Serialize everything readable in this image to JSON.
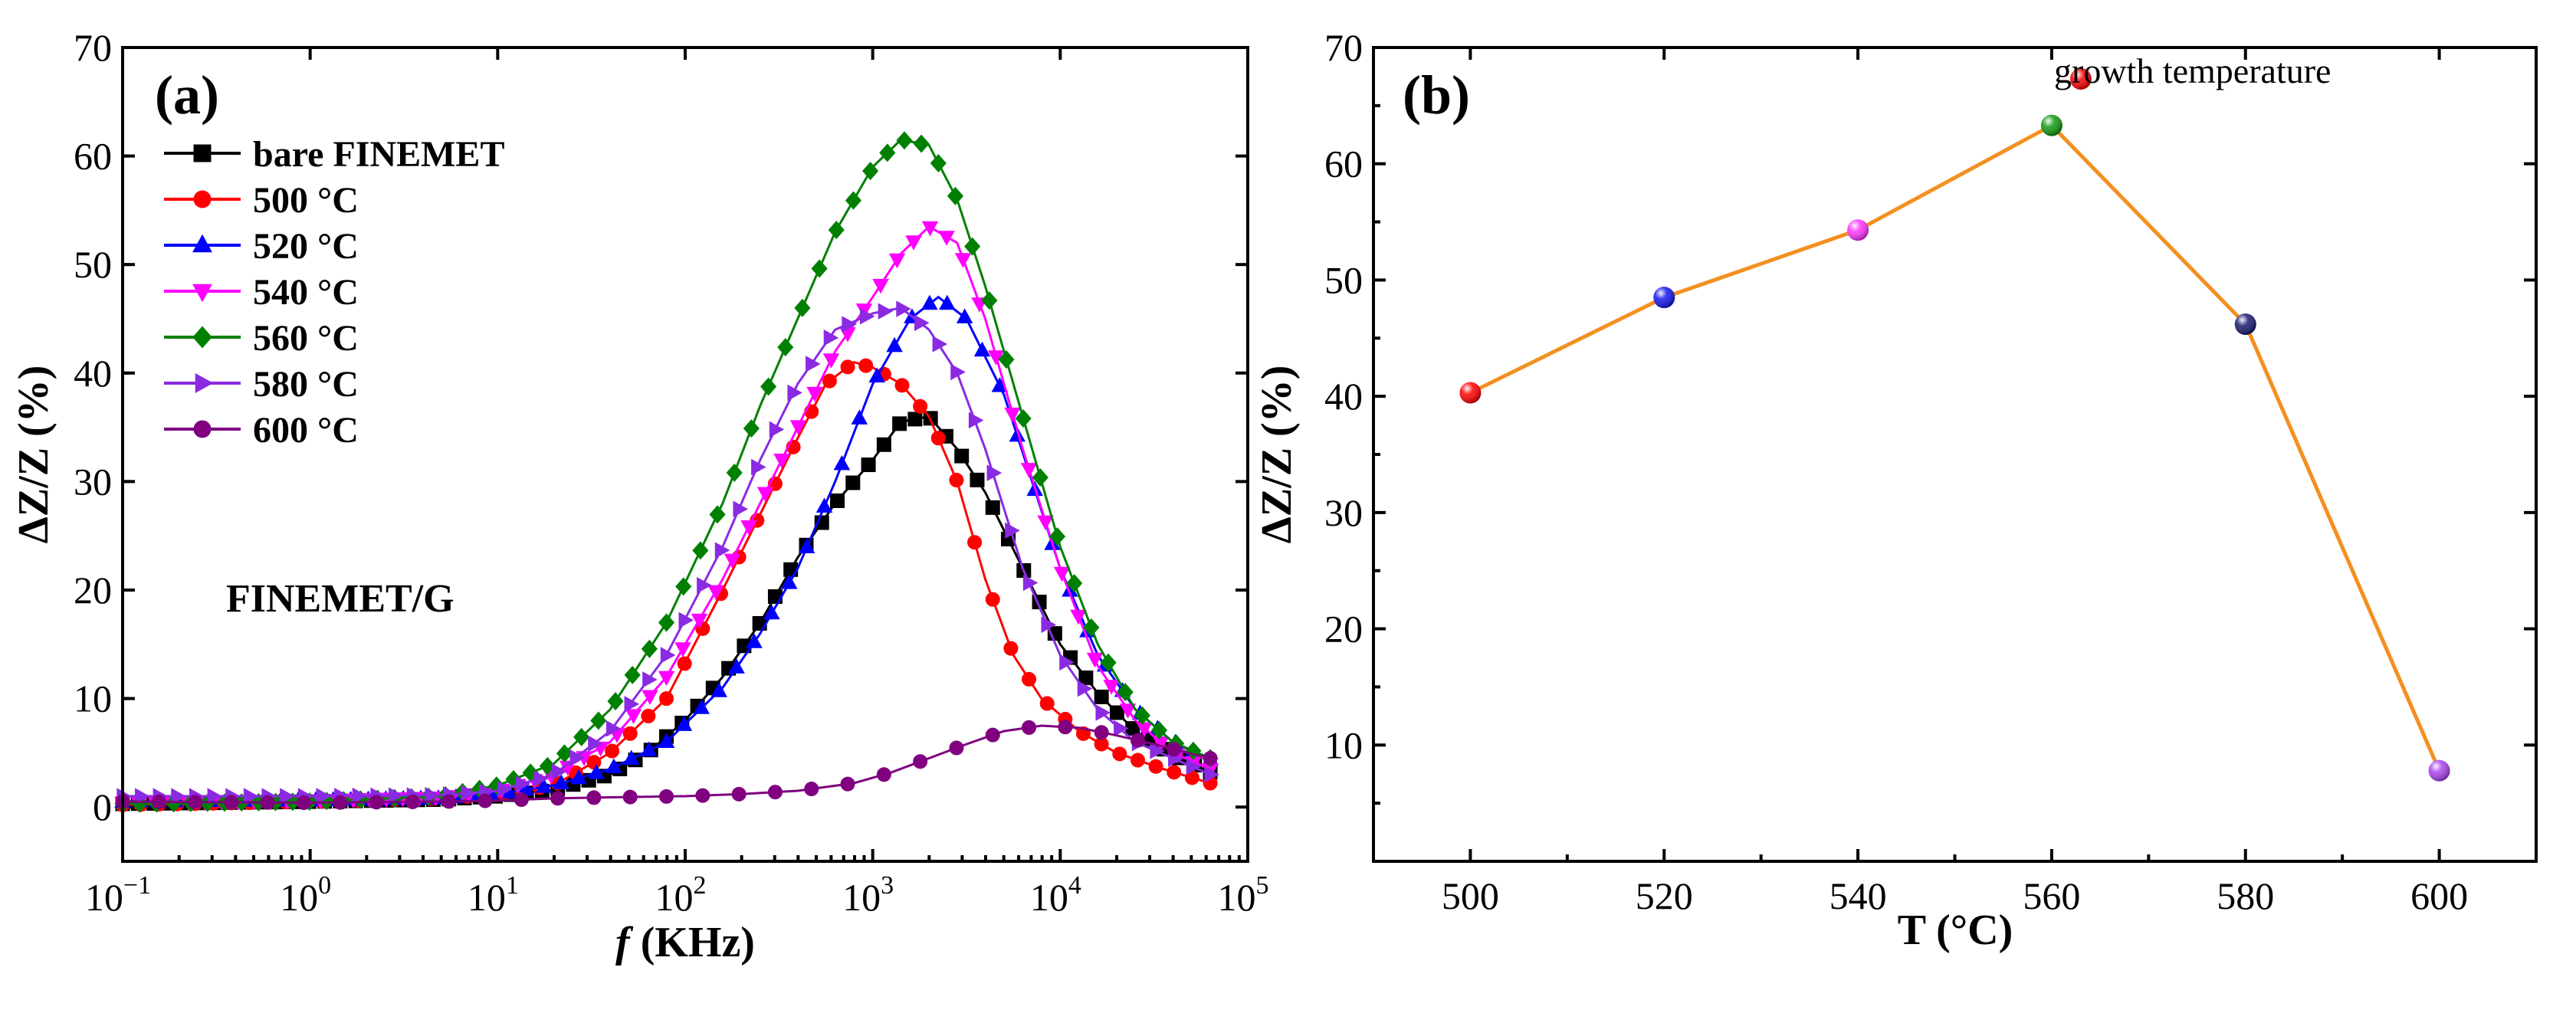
{
  "chart_data": [
    {
      "panel_label": "(a)",
      "type": "line",
      "xscale": "log",
      "xlim_exp": [
        -1,
        5
      ],
      "x_tick_labels": [
        {
          "base": "10",
          "exp": "−1"
        },
        {
          "base": "10",
          "exp": "0"
        },
        {
          "base": "10",
          "exp": "1"
        },
        {
          "base": "10",
          "exp": "2"
        },
        {
          "base": "10",
          "exp": "3"
        },
        {
          "base": "10",
          "exp": "4"
        },
        {
          "base": "10",
          "exp": "5"
        }
      ],
      "ylim": [
        -5,
        70
      ],
      "y_ticks": [
        0,
        10,
        20,
        30,
        40,
        50,
        60,
        70
      ],
      "xlabel": {
        "italic": "f",
        "rest": " (KHz)"
      },
      "ylabel": "ΔZ/Z (%)",
      "annotation": "FINEMET/G",
      "legend_position": "top-left",
      "series": [
        {
          "name": "bare FINEMET",
          "color": "#000000",
          "marker": "square",
          "points": [
            [
              -1,
              0.3
            ],
            [
              0,
              0.5
            ],
            [
              0.7,
              0.7
            ],
            [
              1,
              1
            ],
            [
              1.3,
              1.6
            ],
            [
              1.6,
              3
            ],
            [
              1.8,
              5
            ],
            [
              2,
              8
            ],
            [
              2.2,
              12
            ],
            [
              2.4,
              17
            ],
            [
              2.6,
              23
            ],
            [
              2.8,
              28
            ],
            [
              3,
              32
            ],
            [
              3.15,
              35.5
            ],
            [
              3.3,
              36
            ],
            [
              3.45,
              33
            ],
            [
              3.6,
              29
            ],
            [
              3.8,
              22
            ],
            [
              4,
              15
            ],
            [
              4.2,
              10.5
            ],
            [
              4.4,
              7
            ],
            [
              4.6,
              4.8
            ],
            [
              4.8,
              3.2
            ]
          ]
        },
        {
          "name": "500 °C",
          "color": "#ff0000",
          "marker": "circle",
          "points": [
            [
              -1,
              0.2
            ],
            [
              0,
              0.5
            ],
            [
              0.7,
              0.8
            ],
            [
              1,
              1.2
            ],
            [
              1.3,
              2
            ],
            [
              1.6,
              5
            ],
            [
              1.9,
              10
            ],
            [
              2.2,
              20
            ],
            [
              2.4,
              27
            ],
            [
              2.6,
              34
            ],
            [
              2.75,
              39
            ],
            [
              2.9,
              41
            ],
            [
              3,
              40.5
            ],
            [
              3.15,
              39
            ],
            [
              3.3,
              36
            ],
            [
              3.45,
              30
            ],
            [
              3.6,
              21
            ],
            [
              3.75,
              14
            ],
            [
              3.9,
              10
            ],
            [
              4.1,
              7
            ],
            [
              4.3,
              5
            ],
            [
              4.55,
              3.5
            ],
            [
              4.8,
              2.2
            ]
          ]
        },
        {
          "name": "520 °C",
          "color": "#0000ff",
          "marker": "triangle-up",
          "points": [
            [
              -1,
              0.5
            ],
            [
              0,
              0.6
            ],
            [
              0.7,
              0.8
            ],
            [
              1,
              1.2
            ],
            [
              1.3,
              2
            ],
            [
              1.6,
              3.5
            ],
            [
              1.9,
              6
            ],
            [
              2.2,
              11
            ],
            [
              2.4,
              16
            ],
            [
              2.6,
              22
            ],
            [
              2.8,
              30
            ],
            [
              3,
              39
            ],
            [
              3.2,
              45
            ],
            [
              3.35,
              47
            ],
            [
              3.5,
              45
            ],
            [
              3.7,
              38
            ],
            [
              3.85,
              30
            ],
            [
              4,
              22
            ],
            [
              4.2,
              14
            ],
            [
              4.4,
              9
            ],
            [
              4.6,
              6
            ],
            [
              4.8,
              4.4
            ]
          ]
        },
        {
          "name": "540 °C",
          "color": "#ff00ff",
          "marker": "triangle-down",
          "points": [
            [
              -1,
              0.4
            ],
            [
              0,
              0.6
            ],
            [
              0.7,
              0.9
            ],
            [
              1,
              1.5
            ],
            [
              1.3,
              3
            ],
            [
              1.6,
              6
            ],
            [
              1.9,
              12
            ],
            [
              2.2,
              21
            ],
            [
              2.4,
              28
            ],
            [
              2.6,
              35
            ],
            [
              2.8,
              42
            ],
            [
              3,
              47
            ],
            [
              3.15,
              51
            ],
            [
              3.3,
              53.5
            ],
            [
              3.45,
              52
            ],
            [
              3.6,
              45
            ],
            [
              3.8,
              33
            ],
            [
              4,
              22
            ],
            [
              4.2,
              13
            ],
            [
              4.4,
              8
            ],
            [
              4.6,
              5
            ],
            [
              4.8,
              3.5
            ]
          ]
        },
        {
          "name": "560 °C",
          "color": "#008000",
          "marker": "diamond",
          "points": [
            [
              -1,
              0.3
            ],
            [
              0,
              0.5
            ],
            [
              0.7,
              1
            ],
            [
              1,
              2
            ],
            [
              1.3,
              4
            ],
            [
              1.6,
              9
            ],
            [
              1.9,
              17
            ],
            [
              2.2,
              28
            ],
            [
              2.4,
              37
            ],
            [
              2.6,
              45
            ],
            [
              2.8,
              53
            ],
            [
              3,
              59
            ],
            [
              3.15,
              61.5
            ],
            [
              3.3,
              61
            ],
            [
              3.45,
              56
            ],
            [
              3.6,
              48
            ],
            [
              3.8,
              36
            ],
            [
              4,
              24
            ],
            [
              4.2,
              15
            ],
            [
              4.4,
              9
            ],
            [
              4.6,
              6
            ],
            [
              4.8,
              4.5
            ]
          ]
        },
        {
          "name": "580 °C",
          "color": "#8a2be2",
          "marker": "triangle-right",
          "points": [
            [
              -1,
              1
            ],
            [
              0,
              1
            ],
            [
              0.7,
              1.1
            ],
            [
              1,
              1.5
            ],
            [
              1.3,
              3
            ],
            [
              1.6,
              7
            ],
            [
              1.9,
              14
            ],
            [
              2.2,
              24
            ],
            [
              2.4,
              32
            ],
            [
              2.6,
              39
            ],
            [
              2.8,
              44
            ],
            [
              3,
              45.5
            ],
            [
              3.15,
              46
            ],
            [
              3.3,
              44
            ],
            [
              3.45,
              40
            ],
            [
              3.6,
              33
            ],
            [
              3.8,
              22
            ],
            [
              4,
              14
            ],
            [
              4.2,
              9
            ],
            [
              4.4,
              6
            ],
            [
              4.6,
              4.5
            ],
            [
              4.8,
              3
            ]
          ]
        },
        {
          "name": "600 °C",
          "color": "#800080",
          "marker": "circle",
          "points": [
            [
              -1,
              0.5
            ],
            [
              0,
              0.4
            ],
            [
              0.7,
              0.5
            ],
            [
              1,
              0.6
            ],
            [
              1.3,
              0.8
            ],
            [
              1.6,
              0.9
            ],
            [
              2,
              1
            ],
            [
              2.3,
              1.2
            ],
            [
              2.6,
              1.5
            ],
            [
              2.9,
              2.2
            ],
            [
              3.1,
              3.2
            ],
            [
              3.3,
              4.5
            ],
            [
              3.5,
              5.8
            ],
            [
              3.7,
              7
            ],
            [
              3.9,
              7.5
            ],
            [
              4.1,
              7.3
            ],
            [
              4.3,
              6.6
            ],
            [
              4.5,
              5.8
            ],
            [
              4.7,
              4.9
            ],
            [
              4.8,
              4.5
            ]
          ]
        }
      ]
    },
    {
      "panel_label": "(b)",
      "type": "line",
      "xlim": [
        490,
        610
      ],
      "x_ticks": [
        500,
        520,
        540,
        560,
        580,
        600
      ],
      "ylim": [
        0,
        70
      ],
      "y_ticks": [
        10,
        20,
        30,
        40,
        50,
        60,
        70
      ],
      "xlabel": "T (°C)",
      "ylabel": "ΔZ/Z (%)",
      "line_color": "#f39020",
      "legend_label": "growth temperature",
      "legend_color": "#ff0000",
      "legend_point": [
        563,
        67.3
      ],
      "points": [
        {
          "x": 500,
          "y": 40.3,
          "color": "#ff0000"
        },
        {
          "x": 520,
          "y": 48.5,
          "color": "#1515ee"
        },
        {
          "x": 540,
          "y": 54.3,
          "color": "#ff33ff"
        },
        {
          "x": 560,
          "y": 63.3,
          "color": "#119911"
        },
        {
          "x": 580,
          "y": 46.2,
          "color": "#1a1a70"
        },
        {
          "x": 600,
          "y": 7.8,
          "color": "#aa44ee"
        }
      ]
    }
  ]
}
